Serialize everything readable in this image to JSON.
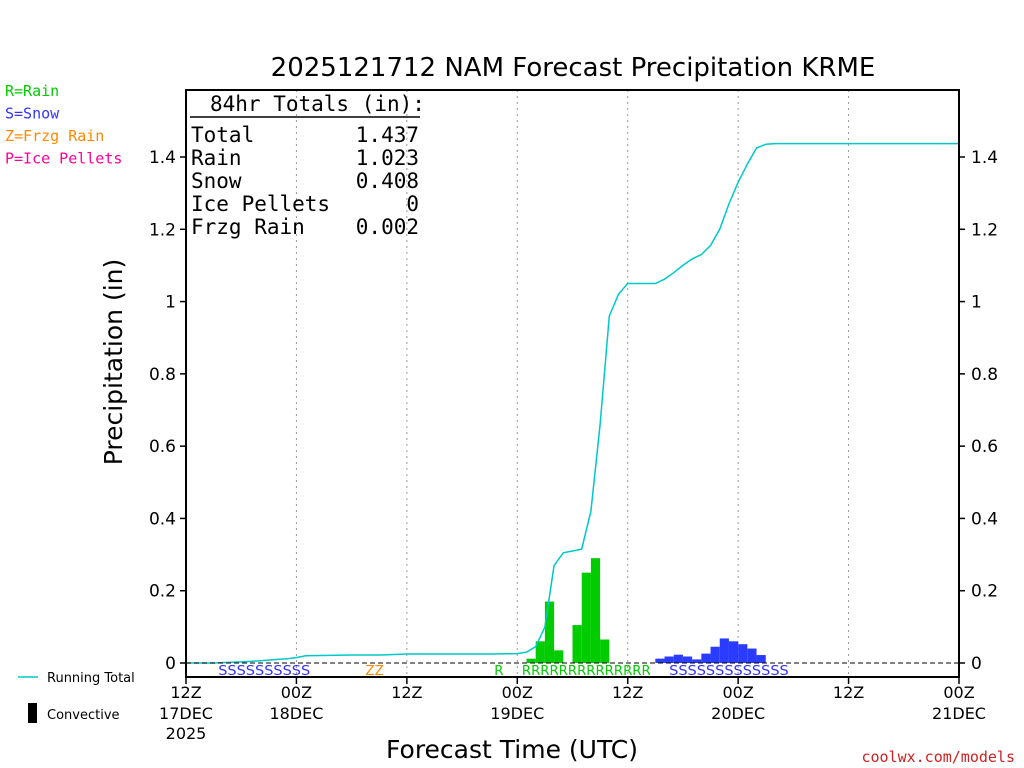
{
  "chart_data": {
    "type": "bar",
    "title": "2025121712 NAM Forecast Precipitation KRME",
    "xlabel": "Forecast Time (UTC)",
    "ylabel": "Precipitation (in)",
    "ylim": [
      0,
      1.55
    ],
    "xlim_hours": [
      0,
      84
    ],
    "yticks": [
      0,
      0.2,
      0.4,
      0.6,
      0.8,
      1,
      1.2,
      1.4
    ],
    "ytick_labels": [
      "0",
      "0.2",
      "0.4",
      "0.6",
      "0.8",
      "1",
      "1.2",
      "1.4"
    ],
    "xticks": [
      {
        "hour": 0,
        "line1": "12Z",
        "line2": "17DEC",
        "line3": "2025"
      },
      {
        "hour": 12,
        "line1": "00Z",
        "line2": "18DEC",
        "line3": ""
      },
      {
        "hour": 24,
        "line1": "12Z",
        "line2": "",
        "line3": ""
      },
      {
        "hour": 36,
        "line1": "00Z",
        "line2": "19DEC",
        "line3": ""
      },
      {
        "hour": 48,
        "line1": "12Z",
        "line2": "",
        "line3": ""
      },
      {
        "hour": 60,
        "line1": "00Z",
        "line2": "20DEC",
        "line3": ""
      },
      {
        "hour": 72,
        "line1": "12Z",
        "line2": "",
        "line3": ""
      },
      {
        "hour": 84,
        "line1": "00Z",
        "line2": "21DEC",
        "line3": ""
      }
    ],
    "grid": "vertical dotted at 12-hour ticks",
    "legend_types": [
      {
        "label": "R=Rain",
        "color": "#00cc00"
      },
      {
        "label": "S=Snow",
        "color": "#3333ff"
      },
      {
        "label": "Z=Frzg Rain",
        "color": "#ff8800"
      },
      {
        "label": "P=Ice Pellets",
        "color": "#ff0099"
      }
    ],
    "legend_lines": {
      "running_total": "Running Total",
      "convective": "Convective"
    },
    "totals": {
      "heading": "84hr Totals (in):",
      "rows": [
        {
          "label": "Total",
          "value": "1.437"
        },
        {
          "label": "Rain",
          "value": "1.023"
        },
        {
          "label": "Snow",
          "value": "0.408"
        },
        {
          "label": "Ice Pellets",
          "value": "0"
        },
        {
          "label": "Frzg Rain",
          "value": "0.002"
        }
      ]
    },
    "series": [
      {
        "name": "Rain",
        "color": "#00cc00",
        "hours": [
          38,
          39,
          40,
          41,
          43,
          44,
          45,
          46
        ],
        "values": [
          0.012,
          0.06,
          0.17,
          0.035,
          0.105,
          0.25,
          0.29,
          0.065
        ]
      },
      {
        "name": "Snow",
        "color": "#2a3cff",
        "hours": [
          52,
          53,
          54,
          55,
          56,
          57,
          58,
          59,
          60,
          61,
          62,
          63
        ],
        "values": [
          0.012,
          0.018,
          0.023,
          0.018,
          0.01,
          0.026,
          0.045,
          0.068,
          0.06,
          0.052,
          0.04,
          0.022
        ]
      },
      {
        "name": "Running Total",
        "color": "#00c8c8",
        "hours": [
          0,
          3,
          6,
          8,
          9,
          10,
          11,
          12,
          13,
          18,
          21,
          24,
          30,
          33,
          36,
          37,
          38,
          39,
          40,
          41,
          42,
          43,
          44,
          45,
          46,
          47,
          48,
          49,
          50,
          51,
          52,
          53,
          54,
          55,
          56,
          57,
          58,
          59,
          60,
          61,
          62,
          63,
          64,
          66,
          70,
          84
        ],
        "values": [
          0,
          0,
          0.003,
          0.006,
          0.008,
          0.01,
          0.012,
          0.015,
          0.02,
          0.022,
          0.022,
          0.025,
          0.025,
          0.025,
          0.026,
          0.03,
          0.045,
          0.1,
          0.27,
          0.305,
          0.31,
          0.315,
          0.42,
          0.66,
          0.96,
          1.02,
          1.05,
          1.05,
          1.05,
          1.05,
          1.062,
          1.08,
          1.1,
          1.118,
          1.13,
          1.155,
          1.2,
          1.27,
          1.33,
          1.38,
          1.425,
          1.435,
          1.437,
          1.437,
          1.437,
          1.437
        ]
      }
    ],
    "ptype_markers": [
      {
        "text": "SSSSSSSSSS",
        "color": "#3333ff",
        "start_hour": 3.5
      },
      {
        "text": "ZZ",
        "color": "#ff8800",
        "start_hour": 19.5
      },
      {
        "text": "R",
        "color": "#00cc00",
        "start_hour": 33.5
      },
      {
        "text": "RRRRRRRRRRRRRR",
        "color": "#00cc00",
        "start_hour": 36.5
      },
      {
        "text": "SSSSSSSSSSSSS",
        "color": "#3333ff",
        "start_hour": 52.5
      }
    ],
    "credit": "coolwx.com/models"
  }
}
